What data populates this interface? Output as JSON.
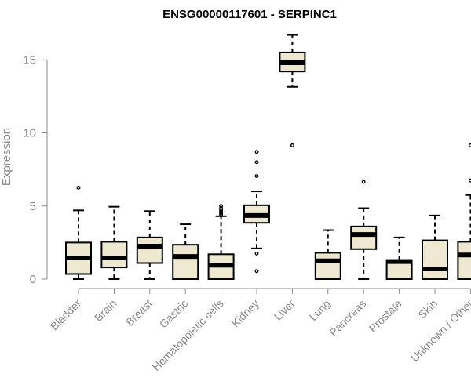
{
  "chart_data": {
    "type": "boxplot",
    "title": "ENSG00000117601 - SERPINC1",
    "xlabel": "",
    "ylabel": "Expression",
    "ylim": [
      0,
      17
    ],
    "yticks": [
      0,
      5,
      10,
      15
    ],
    "categories": [
      "Bladder",
      "Brain",
      "Breast",
      "Gastric",
      "Hematopoietic cells",
      "Kidney",
      "Liver",
      "Lung",
      "Pancreas",
      "Prostate",
      "Skin",
      "Unknown / Other"
    ],
    "boxes": [
      {
        "category": "Bladder",
        "whisker_low": 0.0,
        "q1": 0.35,
        "median": 1.45,
        "q3": 2.5,
        "whisker_high": 4.7,
        "outliers": [
          6.25
        ]
      },
      {
        "category": "Brain",
        "whisker_low": 0.0,
        "q1": 0.8,
        "median": 1.45,
        "q3": 2.55,
        "whisker_high": 4.95,
        "outliers": []
      },
      {
        "category": "Breast",
        "whisker_low": 0.0,
        "q1": 1.1,
        "median": 2.25,
        "q3": 2.85,
        "whisker_high": 4.65,
        "outliers": []
      },
      {
        "category": "Gastric",
        "whisker_low": 0.0,
        "q1": 0.0,
        "median": 1.55,
        "q3": 2.35,
        "whisker_high": 3.75,
        "outliers": []
      },
      {
        "category": "Hematopoietic cells",
        "whisker_low": 0.0,
        "q1": 0.0,
        "median": 0.95,
        "q3": 1.7,
        "whisker_high": 4.3,
        "outliers": [
          4.4,
          4.5,
          4.6,
          4.7,
          4.85,
          5.0
        ]
      },
      {
        "category": "Kidney",
        "whisker_low": 2.1,
        "q1": 3.85,
        "median": 4.35,
        "q3": 5.05,
        "whisker_high": 6.0,
        "outliers": [
          0.55,
          1.75,
          7.05,
          8.0,
          8.7
        ]
      },
      {
        "category": "Liver",
        "whisker_low": 13.15,
        "q1": 14.2,
        "median": 14.8,
        "q3": 15.5,
        "whisker_high": 16.7,
        "outliers": [
          9.15
        ]
      },
      {
        "category": "Lung",
        "whisker_low": 0.0,
        "q1": 0.0,
        "median": 1.25,
        "q3": 1.8,
        "whisker_high": 3.35,
        "outliers": []
      },
      {
        "category": "Pancreas",
        "whisker_low": 0.0,
        "q1": 2.05,
        "median": 3.05,
        "q3": 3.6,
        "whisker_high": 4.85,
        "outliers": [
          6.65
        ]
      },
      {
        "category": "Prostate",
        "whisker_low": 0.0,
        "q1": 0.0,
        "median": 1.2,
        "q3": 1.3,
        "whisker_high": 2.85,
        "outliers": []
      },
      {
        "category": "Skin",
        "whisker_low": 0.0,
        "q1": 0.0,
        "median": 0.7,
        "q3": 2.65,
        "whisker_high": 4.35,
        "outliers": []
      },
      {
        "category": "Unknown / Other",
        "whisker_low": 0.0,
        "q1": 0.0,
        "median": 1.65,
        "q3": 2.55,
        "whisker_high": 5.75,
        "outliers": [
          6.75,
          9.15
        ]
      }
    ]
  }
}
